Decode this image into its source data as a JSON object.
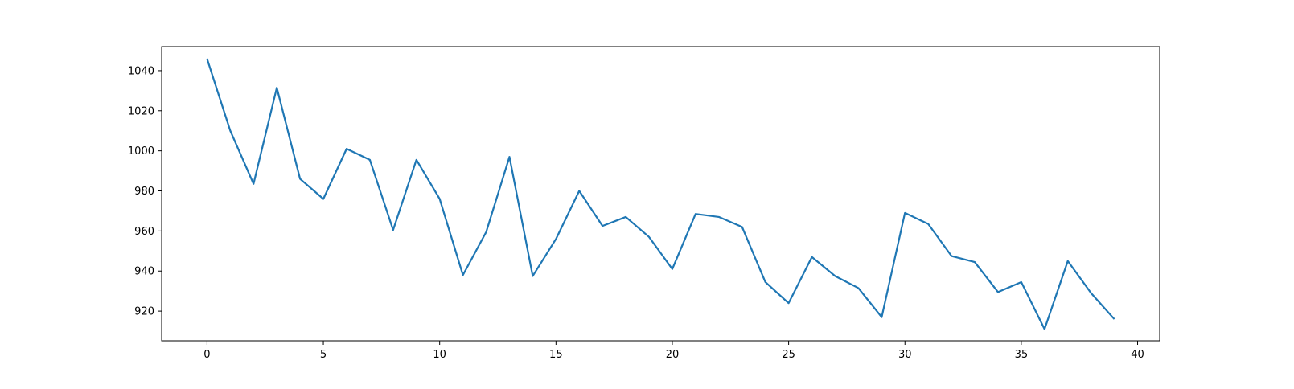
{
  "chart_data": {
    "type": "line",
    "title": "",
    "xlabel": "",
    "ylabel": "",
    "xlim": [
      -1.95,
      40.95
    ],
    "ylim": [
      905.2,
      1052.0
    ],
    "xticks": [
      0,
      5,
      10,
      15,
      20,
      25,
      30,
      35,
      40
    ],
    "yticks": [
      920,
      940,
      960,
      980,
      1000,
      1020,
      1040
    ],
    "grid": false,
    "legend": "none",
    "line_color": "#1f77b4",
    "series": [
      {
        "x": [
          0,
          1,
          2,
          3,
          4,
          5,
          6,
          7,
          8,
          9,
          10,
          11,
          12,
          13,
          14,
          15,
          16,
          17,
          18,
          19,
          20,
          21,
          22,
          23,
          24,
          25,
          26,
          27,
          28,
          29,
          30,
          31,
          32,
          33,
          34,
          35,
          36,
          37,
          38,
          39
        ],
        "values": [
          1046,
          1010,
          983.5,
          1031.5,
          986,
          976,
          1001,
          995.5,
          960.5,
          995.5,
          976,
          938,
          959.5,
          997,
          937.5,
          956,
          980,
          962.5,
          967,
          957,
          941,
          968.5,
          967,
          962,
          934.5,
          924,
          947,
          937.5,
          931.5,
          917,
          969,
          963.5,
          947.5,
          944.5,
          929.5,
          934.5,
          911,
          945,
          929,
          916
        ]
      }
    ]
  }
}
